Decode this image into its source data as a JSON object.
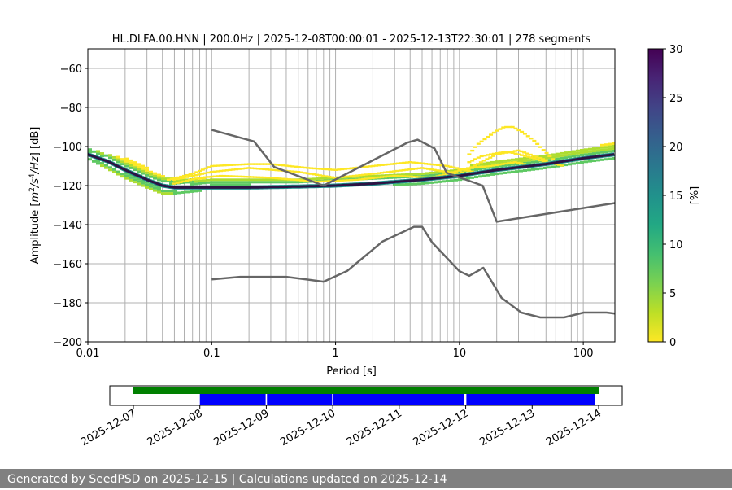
{
  "chart_data": {
    "type": "heatmap",
    "title": "HL.DLFA.00.HNN | 200.0Hz | 2025-12-08T00:00:01 - 2025-12-13T22:30:01 | 278 segments",
    "xlabel": "Period [s]",
    "ylabel_parts": [
      "Amplitude [",
      "m",
      "2",
      "/",
      "s",
      "4",
      "/",
      "Hz",
      "] [dB]"
    ],
    "x_scale": "log",
    "xlim": [
      0.01,
      180
    ],
    "ylim": [
      -200,
      -50
    ],
    "x_ticks": [
      {
        "value": 0.01,
        "label": "0.01"
      },
      {
        "value": 0.1,
        "label": "0.1"
      },
      {
        "value": 1,
        "label": "1"
      },
      {
        "value": 10,
        "label": "10"
      },
      {
        "value": 100,
        "label": "100"
      }
    ],
    "y_ticks": [
      {
        "value": -60,
        "label": "−60"
      },
      {
        "value": -80,
        "label": "−80"
      },
      {
        "value": -100,
        "label": "−100"
      },
      {
        "value": -120,
        "label": "−120"
      },
      {
        "value": -140,
        "label": "−140"
      },
      {
        "value": -160,
        "label": "−160"
      },
      {
        "value": -180,
        "label": "−180"
      },
      {
        "value": -200,
        "label": "−200"
      }
    ],
    "grid": "x-major-and-minor",
    "colorbar": {
      "label": "[%]",
      "range": [
        0,
        30
      ],
      "colormap": "viridis-reversed",
      "ticks": [
        {
          "value": 0,
          "label": "0"
        },
        {
          "value": 5,
          "label": "5"
        },
        {
          "value": 10,
          "label": "10"
        },
        {
          "value": 15,
          "label": "15"
        },
        {
          "value": 20,
          "label": "20"
        },
        {
          "value": 25,
          "label": "25"
        },
        {
          "value": 30,
          "label": "30"
        }
      ]
    },
    "mode_curve": {
      "x": [
        0.01,
        0.015,
        0.02,
        0.03,
        0.04,
        0.05,
        0.07,
        0.1,
        0.2,
        0.5,
        1,
        2,
        5,
        10,
        20,
        50,
        100,
        180
      ],
      "y": [
        -104,
        -108,
        -112,
        -117,
        -120,
        -121,
        -121,
        -121,
        -121,
        -120.5,
        -120,
        -119,
        -117,
        -115,
        -112,
        -109,
        -106,
        -104
      ],
      "probability_pct": 30
    },
    "spread_band": {
      "x": [
        0.01,
        0.02,
        0.03,
        0.04,
        0.05,
        0.1,
        0.5,
        1,
        5,
        10,
        20,
        50,
        100,
        180
      ],
      "y_low": [
        -106,
        -116,
        -121,
        -124,
        -124,
        -122,
        -122,
        -121,
        -119,
        -117,
        -114,
        -111,
        -108,
        -106
      ],
      "y_high": [
        -101,
        -106,
        -111,
        -115,
        -116,
        -116,
        -116,
        -115,
        -113,
        -111,
        -107,
        -104,
        -101,
        -98
      ]
    },
    "scatter_traces": [
      {
        "x": [
          0.05,
          0.1,
          0.2,
          0.5,
          1,
          2,
          5,
          10,
          15,
          20,
          30,
          50
        ],
        "y": [
          -117,
          -113,
          -111,
          -113,
          -116,
          -114,
          -111,
          -114,
          -108,
          -104,
          -102,
          -107
        ]
      },
      {
        "x": [
          0.05,
          0.08,
          0.12,
          0.3,
          0.7,
          1.5,
          3,
          6,
          12,
          18,
          28,
          40
        ],
        "y": [
          -119,
          -116,
          -115,
          -116,
          -118,
          -117,
          -115,
          -116,
          -111,
          -110,
          -108,
          -110
        ]
      },
      {
        "x": [
          0.045,
          0.07,
          0.1,
          0.2,
          0.3,
          0.6,
          1,
          2,
          4,
          8,
          13
        ],
        "y": [
          -117,
          -114,
          -110,
          -109,
          -109,
          -111,
          -112,
          -110,
          -108,
          -110,
          -113
        ]
      },
      {
        "x": [
          12,
          14,
          17,
          20,
          23,
          27,
          33,
          40,
          50,
          60
        ],
        "y": [
          -104,
          -99,
          -95,
          -92,
          -90,
          -90,
          -93,
          -97,
          -103,
          -108
        ]
      },
      {
        "x": [
          12,
          15,
          18,
          22,
          26,
          30,
          40,
          50,
          70
        ],
        "y": [
          -108,
          -105,
          -104,
          -103,
          -103,
          -104,
          -106,
          -108,
          -110
        ]
      }
    ],
    "noise_model_high": {
      "x": [
        0.1,
        0.22,
        0.32,
        0.8,
        3.8,
        4.6,
        6.3,
        7.9,
        15.4,
        20,
        354.8
      ],
      "y": [
        -91.5,
        -97.4,
        -110.5,
        -120,
        -98,
        -96.5,
        -101,
        -113.5,
        -120,
        -138.5,
        -126
      ]
    },
    "noise_model_low": {
      "x": [
        0.1,
        0.17,
        0.4,
        0.8,
        1.24,
        2.4,
        4.3,
        5,
        6,
        10,
        12,
        15.6,
        21.9,
        31.6,
        45,
        70,
        101,
        154,
        180
      ],
      "y": [
        -168.0,
        -166.7,
        -166.7,
        -169.2,
        -163.7,
        -148.6,
        -141.1,
        -141.1,
        -149.0,
        -163.8,
        -166.2,
        -162.1,
        -177.5,
        -185.0,
        -187.5,
        -187.5,
        -185.0,
        -185.0,
        -185.5
      ]
    }
  },
  "timeline": {
    "date_labels": [
      "2025-12-07",
      "2025-12-08",
      "2025-12-09",
      "2025-12-10",
      "2025-12-11",
      "2025-12-12",
      "2025-12-13",
      "2025-12-14"
    ],
    "coverage_bar": {
      "start_day": 0,
      "end_day": 7,
      "color": "#008000"
    },
    "used_segments": [
      {
        "start_day": 1.0,
        "end_day": 1.99
      },
      {
        "start_day": 2.01,
        "end_day": 2.99
      },
      {
        "start_day": 3.01,
        "end_day": 4.98
      },
      {
        "start_day": 5.01,
        "end_day": 6.94
      }
    ],
    "used_color": "#0000ff"
  },
  "footer": {
    "text": "Generated by SeedPSD on 2025-12-15 | Calculations updated on 2025-12-14"
  }
}
